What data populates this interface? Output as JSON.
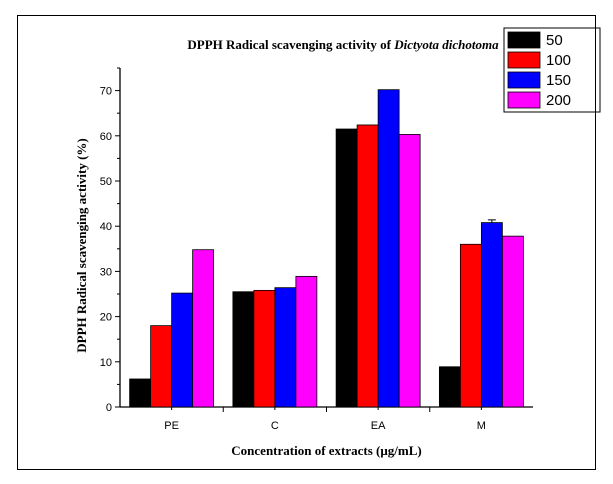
{
  "chart_data": {
    "type": "bar",
    "title": "DPPH Radical scavenging activity of ",
    "title_italic": "Dictyota dichotoma",
    "xlabel": "Concentration of extracts (μg/mL)",
    "ylabel": "DPPH Radical scavenging activity (%)",
    "categories": [
      "PE",
      "C",
      "EA",
      "M"
    ],
    "ylim": [
      0,
      75
    ],
    "yticks": [
      0,
      10,
      20,
      30,
      40,
      50,
      60,
      70
    ],
    "grid": false,
    "legend_position": "top-right",
    "series": [
      {
        "name": "50",
        "color": "#000000",
        "values": [
          6.2,
          25.5,
          61.5,
          8.9
        ]
      },
      {
        "name": "100",
        "color": "#ff0000",
        "values": [
          18.0,
          25.8,
          62.4,
          36.0
        ]
      },
      {
        "name": "150",
        "color": "#0000ff",
        "values": [
          25.2,
          26.4,
          70.2,
          40.8
        ]
      },
      {
        "name": "200",
        "color": "#ff00ff",
        "values": [
          34.8,
          28.9,
          60.3,
          37.8
        ]
      }
    ]
  }
}
